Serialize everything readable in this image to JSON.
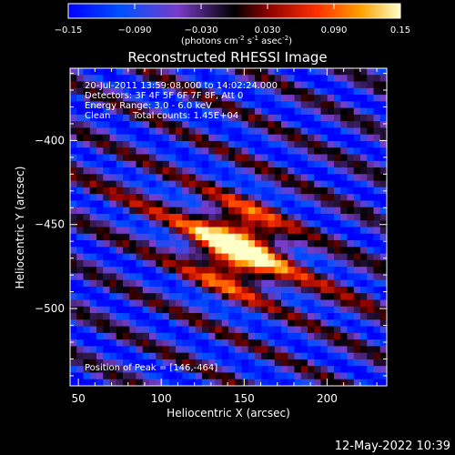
{
  "chart_data": {
    "type": "heatmap",
    "title": "Reconstructed RHESSI Image",
    "xlabel": "Heliocentric X (arcsec)",
    "ylabel": "Heliocentric Y (arcsec)",
    "xlim": [
      45,
      236
    ],
    "ylim": [
      -546,
      -357
    ],
    "x_ticks": [
      50,
      100,
      150,
      200
    ],
    "y_ticks": [
      -400,
      -450,
      -500
    ],
    "colorbar": {
      "min": -0.15,
      "max": 0.15,
      "ticks": [
        "-0.15",
        "-0.090",
        "-0.030",
        "0.030",
        "0.090",
        "0.15"
      ],
      "label_main": "(photons cm",
      "label_exp1": "-2",
      "label_mid": " s",
      "label_exp2": "-1",
      "label_mid2": " asec",
      "label_exp3": "-2",
      "label_end": ")"
    },
    "annotations": [
      "20-Jul-2011 13:59:08.000 to 14:02:24.000",
      "Detectors: 3F 4F 5F 6F 7F 8F, Att 0",
      "Energy Range: 3.0 - 6.0 keV"
    ],
    "clean_label": "Clean",
    "total_counts": "Total counts: 1.45E+04",
    "peak_label": "Position of Peak = [146,-464]",
    "peak": {
      "x": 146,
      "y": -464,
      "value": 0.15
    },
    "ripple": {
      "stripe_slope": -0.45,
      "stripe_period": 27,
      "core_sigma": 18,
      "core_amplitude": 0.18
    },
    "pixel_count": 48
  },
  "footer": {
    "timestamp": "12-May-2022 10:39"
  }
}
